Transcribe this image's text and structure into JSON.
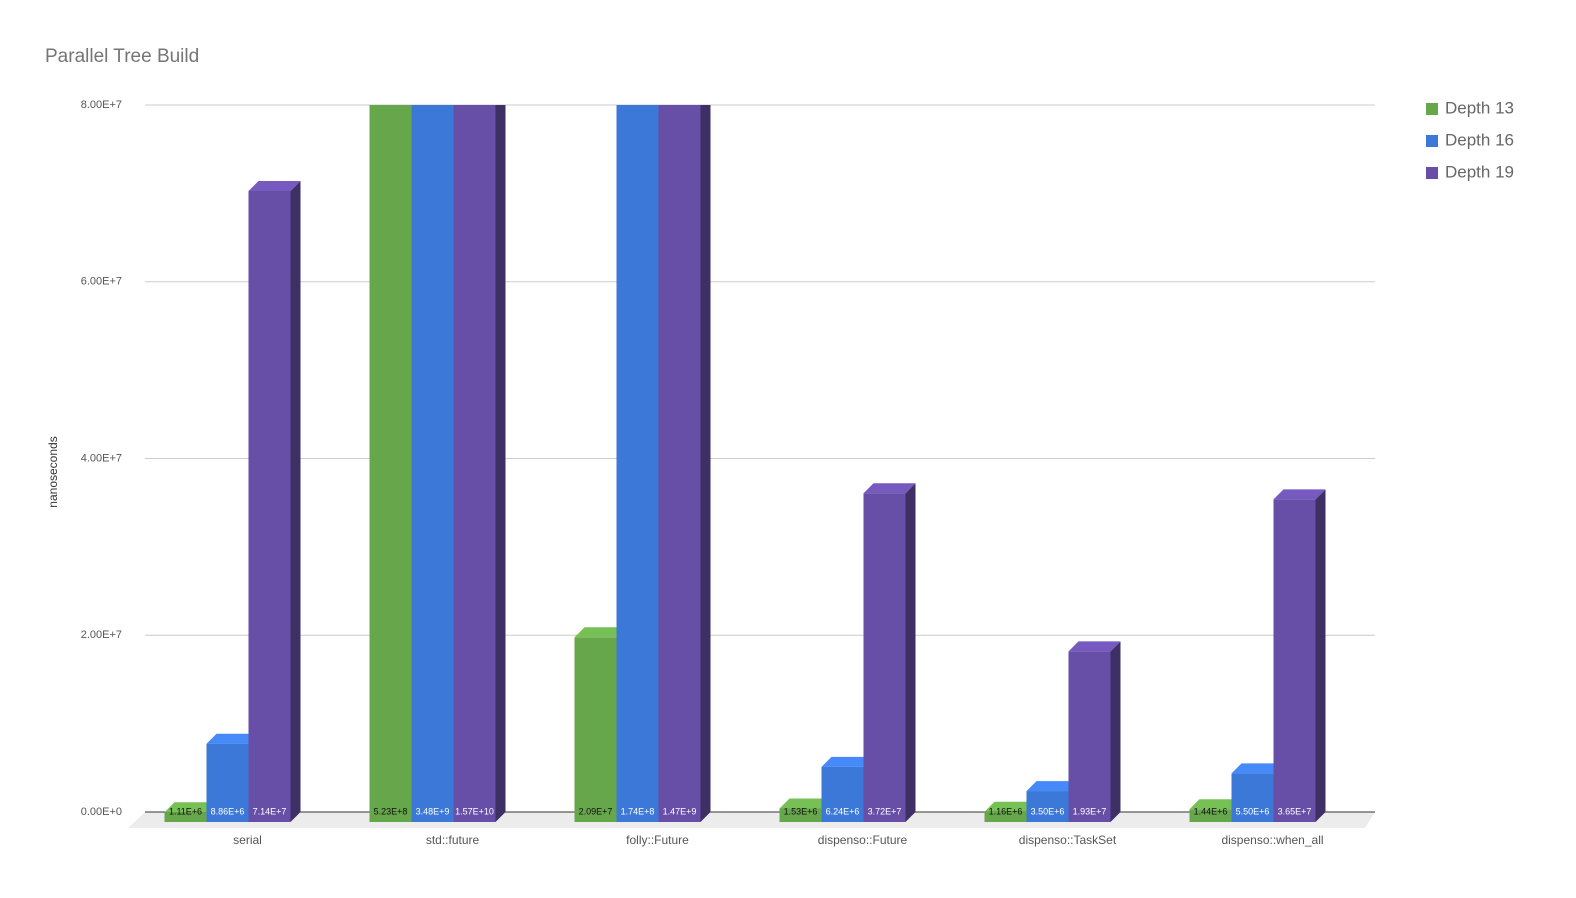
{
  "chart_data": {
    "type": "bar3d",
    "title": "Parallel Tree Build",
    "y_label": "nanoseconds",
    "categories": [
      "serial",
      "std::future",
      "folly::Future",
      "dispenso::Future",
      "dispenso::TaskSet",
      "dispenso::when_all"
    ],
    "series": [
      {
        "name": "Depth 13",
        "color": "#67a74b",
        "values": [
          1110000,
          523000000,
          20900000,
          1530000,
          1160000,
          1440000
        ],
        "value_labels": [
          "1.11E+6",
          "5.23E+8",
          "2.09E+7",
          "1.53E+6",
          "1.16E+6",
          "1.44E+6"
        ]
      },
      {
        "name": "Depth 16",
        "color": "#3c78d8",
        "values": [
          8860000,
          3480000000,
          174000000,
          6240000,
          3500000,
          5500000
        ],
        "value_labels": [
          "8.86E+6",
          "3.48E+9",
          "1.74E+8",
          "6.24E+6",
          "3.50E+6",
          "5.50E+6"
        ]
      },
      {
        "name": "Depth 19",
        "color": "#674ea7",
        "values": [
          71400000,
          15700000000,
          1470000000,
          37200000,
          19300000,
          36500000
        ],
        "value_labels": [
          "7.14E+7",
          "1.57E+10",
          "1.47E+9",
          "3.72E+7",
          "1.93E+7",
          "3.65E+7"
        ]
      }
    ],
    "ylim": [
      0,
      80000000
    ],
    "yticks": [
      {
        "value": 0,
        "label": "0.00E+0"
      },
      {
        "value": 20000000,
        "label": "2.00E+7"
      },
      {
        "value": 40000000,
        "label": "4.00E+7"
      },
      {
        "value": 60000000,
        "label": "6.00E+7"
      },
      {
        "value": 80000000,
        "label": "8.00E+7"
      }
    ],
    "grid": true,
    "legend": "right"
  }
}
